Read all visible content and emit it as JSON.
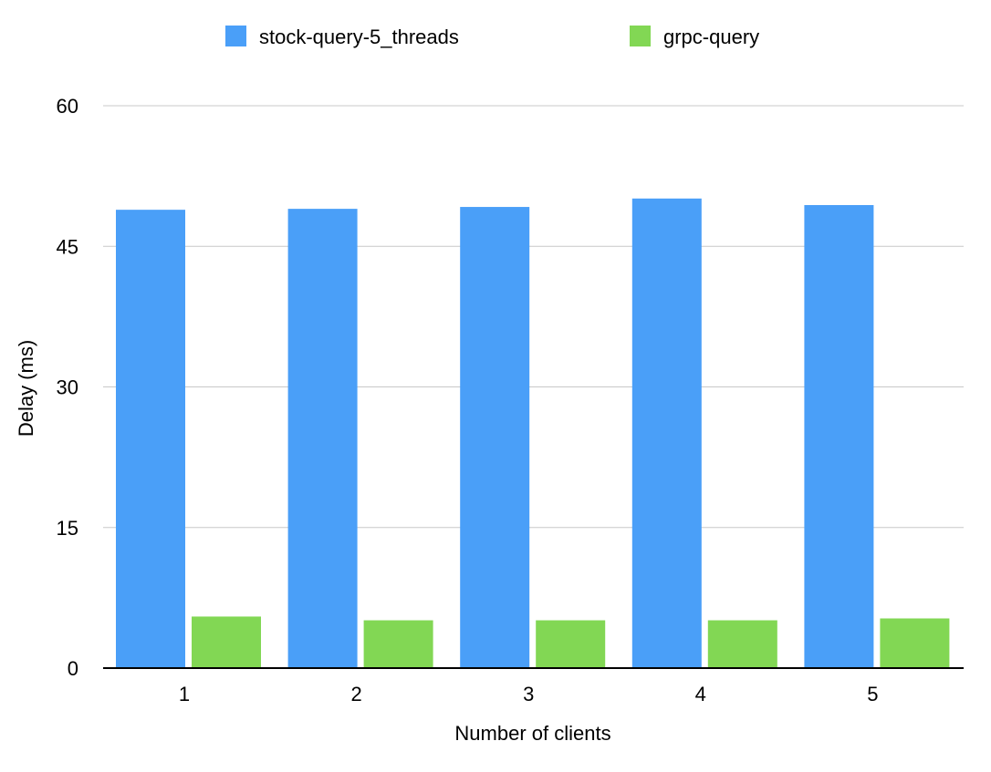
{
  "chart_data": {
    "type": "bar",
    "title": "",
    "xlabel": "Number of clients",
    "ylabel": "Delay (ms)",
    "categories": [
      "1",
      "2",
      "3",
      "4",
      "5"
    ],
    "series": [
      {
        "name": "stock-query-5_threads",
        "color": "#4A9FF8",
        "values": [
          48.9,
          49.0,
          49.2,
          50.1,
          49.4
        ]
      },
      {
        "name": "grpc-query",
        "color": "#82D754",
        "values": [
          5.5,
          5.1,
          5.1,
          5.1,
          5.3
        ]
      }
    ],
    "ylim": [
      0,
      60
    ],
    "yticks": [
      0,
      15,
      30,
      45,
      60
    ],
    "grid": true,
    "legend": "top-center"
  }
}
